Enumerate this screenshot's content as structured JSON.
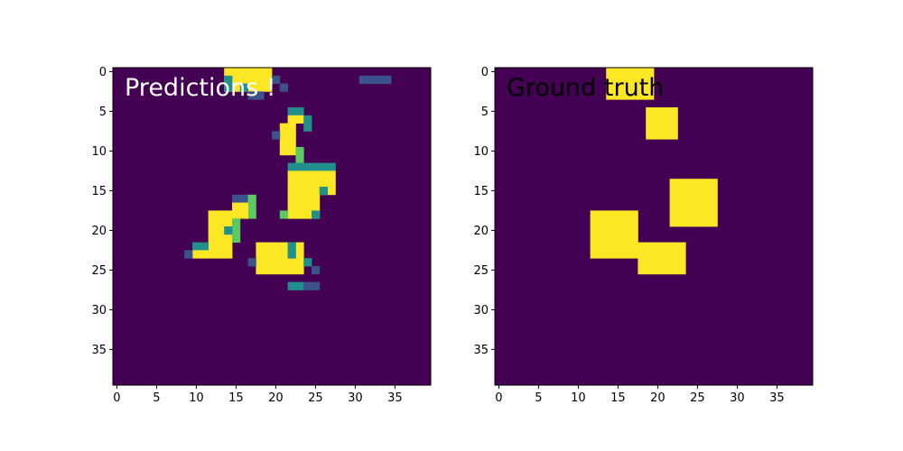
{
  "colors": {
    "background": "#440154",
    "low": "#3b528b",
    "mid": "#21908d",
    "high": "#5dc963",
    "max": "#fde725",
    "prediction_text": "#ffffff",
    "truth_text": "#000000"
  },
  "chart_data": [
    {
      "type": "heatmap",
      "title": "Predictions !",
      "grid_size": 40,
      "xticks": [
        0,
        5,
        10,
        15,
        20,
        25,
        30,
        35
      ],
      "yticks": [
        0,
        5,
        10,
        15,
        20,
        25,
        30,
        35
      ],
      "xlim": [
        -0.5,
        39.5
      ],
      "ylim": [
        39.5,
        -0.5
      ],
      "background_value": 0,
      "cells": [
        {
          "x": 14,
          "y": 0,
          "w": 6,
          "h": 3,
          "v": 1.0
        },
        {
          "x": 14,
          "y": 1,
          "w": 1,
          "h": 1,
          "v": 0.6
        },
        {
          "x": 14,
          "y": 2,
          "w": 1,
          "h": 1,
          "v": 0.5
        },
        {
          "x": 16,
          "y": 2,
          "w": 1,
          "h": 1,
          "v": 0.6
        },
        {
          "x": 20,
          "y": 1,
          "w": 1,
          "h": 1,
          "v": 0.2
        },
        {
          "x": 21,
          "y": 2,
          "w": 1,
          "h": 1,
          "v": 0.15
        },
        {
          "x": 17,
          "y": 3,
          "w": 2,
          "h": 1,
          "v": 0.2
        },
        {
          "x": 22,
          "y": 5,
          "w": 2,
          "h": 1,
          "v": 0.6
        },
        {
          "x": 22,
          "y": 6,
          "w": 2,
          "h": 1,
          "v": 1.0
        },
        {
          "x": 24,
          "y": 6,
          "w": 1,
          "h": 2,
          "v": 0.5
        },
        {
          "x": 21,
          "y": 7,
          "w": 2,
          "h": 4,
          "v": 1.0
        },
        {
          "x": 20,
          "y": 8,
          "w": 1,
          "h": 1,
          "v": 0.3
        },
        {
          "x": 23,
          "y": 10,
          "w": 1,
          "h": 2,
          "v": 0.7
        },
        {
          "x": 22,
          "y": 12,
          "w": 6,
          "h": 1,
          "v": 0.6
        },
        {
          "x": 22,
          "y": 13,
          "w": 6,
          "h": 3,
          "v": 1.0
        },
        {
          "x": 26,
          "y": 15,
          "w": 1,
          "h": 1,
          "v": 0.5
        },
        {
          "x": 22,
          "y": 16,
          "w": 4,
          "h": 3,
          "v": 1.0
        },
        {
          "x": 21,
          "y": 18,
          "w": 1,
          "h": 1,
          "v": 0.8
        },
        {
          "x": 25,
          "y": 18,
          "w": 1,
          "h": 1,
          "v": 0.5
        },
        {
          "x": 15,
          "y": 16,
          "w": 2,
          "h": 1,
          "v": 0.3
        },
        {
          "x": 17,
          "y": 16,
          "w": 1,
          "h": 3,
          "v": 0.8
        },
        {
          "x": 12,
          "y": 18,
          "w": 3,
          "h": 6,
          "v": 1.0
        },
        {
          "x": 15,
          "y": 17,
          "w": 2,
          "h": 2,
          "v": 1.0
        },
        {
          "x": 15,
          "y": 19,
          "w": 1,
          "h": 3,
          "v": 0.8
        },
        {
          "x": 14,
          "y": 20,
          "w": 1,
          "h": 1,
          "v": 0.4
        },
        {
          "x": 10,
          "y": 22,
          "w": 2,
          "h": 1,
          "v": 0.6
        },
        {
          "x": 10,
          "y": 23,
          "w": 2,
          "h": 1,
          "v": 1.0
        },
        {
          "x": 9,
          "y": 23,
          "w": 1,
          "h": 1,
          "v": 0.3
        },
        {
          "x": 18,
          "y": 22,
          "w": 6,
          "h": 4,
          "v": 1.0
        },
        {
          "x": 17,
          "y": 24,
          "w": 1,
          "h": 1,
          "v": 0.3
        },
        {
          "x": 22,
          "y": 22,
          "w": 1,
          "h": 2,
          "v": 0.6
        },
        {
          "x": 24,
          "y": 24,
          "w": 1,
          "h": 1,
          "v": 0.5
        },
        {
          "x": 25,
          "y": 25,
          "w": 1,
          "h": 1,
          "v": 0.3
        },
        {
          "x": 22,
          "y": 27,
          "w": 1,
          "h": 1,
          "v": 0.4
        },
        {
          "x": 23,
          "y": 27,
          "w": 1,
          "h": 1,
          "v": 0.6
        },
        {
          "x": 24,
          "y": 27,
          "w": 2,
          "h": 1,
          "v": 0.3
        },
        {
          "x": 31,
          "y": 1,
          "w": 4,
          "h": 1,
          "v": 0.05
        }
      ]
    },
    {
      "type": "heatmap",
      "title": "Ground truth",
      "grid_size": 40,
      "xticks": [
        0,
        5,
        10,
        15,
        20,
        25,
        30,
        35
      ],
      "yticks": [
        0,
        5,
        10,
        15,
        20,
        25,
        30,
        35
      ],
      "xlim": [
        -0.5,
        39.5
      ],
      "ylim": [
        39.5,
        -0.5
      ],
      "background_value": 0,
      "cells": [
        {
          "x": 14,
          "y": 0,
          "w": 6,
          "h": 4,
          "v": 1.0
        },
        {
          "x": 19,
          "y": 5,
          "w": 4,
          "h": 4,
          "v": 1.0
        },
        {
          "x": 22,
          "y": 14,
          "w": 6,
          "h": 6,
          "v": 1.0
        },
        {
          "x": 12,
          "y": 18,
          "w": 6,
          "h": 6,
          "v": 1.0
        },
        {
          "x": 18,
          "y": 22,
          "w": 6,
          "h": 4,
          "v": 1.0
        }
      ]
    }
  ]
}
